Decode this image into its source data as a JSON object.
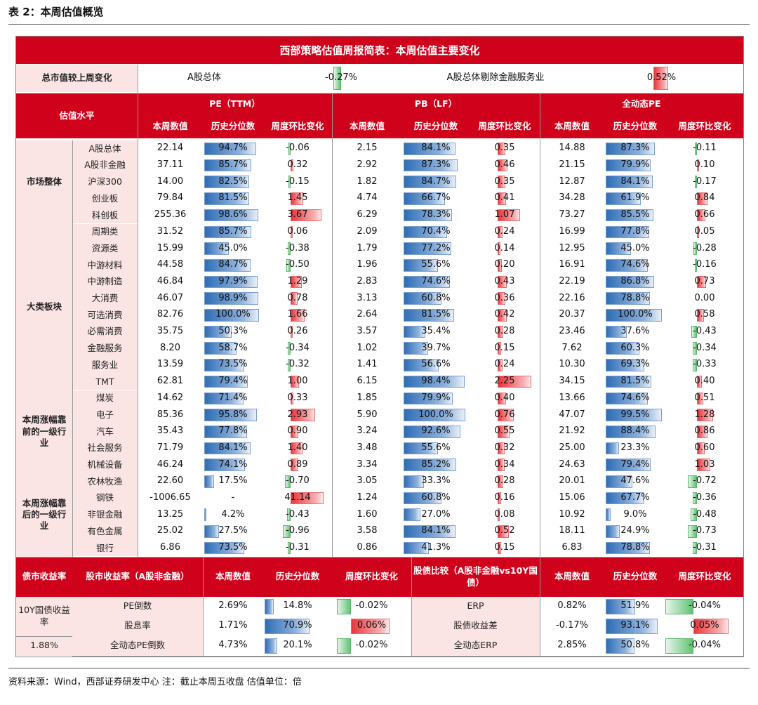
{
  "caption": "表 2：本周估值概览",
  "title": "西部策略估值周报简表：本周估值主要变化",
  "summary": {
    "label": "总市值较上周变化",
    "items": [
      {
        "name": "A股总体",
        "value": "-0.27%",
        "num": -0.27
      },
      {
        "name": "A股总体剔除金融服务业",
        "value": "0.52%",
        "num": 0.52
      }
    ]
  },
  "headers": {
    "level_label": "估值水平",
    "groups": [
      "PE（TTM）",
      "PB（LF）",
      "全动态PE"
    ],
    "sub": [
      "本周数值",
      "历史分位数",
      "周度环比变化"
    ]
  },
  "sections": [
    {
      "name": "市场整体",
      "rows": [
        {
          "name": "A股总体",
          "pe": [
            "22.14",
            "94.7%",
            "-0.06"
          ],
          "pb": [
            "2.15",
            "84.1%",
            "0.35"
          ],
          "dpe": [
            "14.88",
            "87.3%",
            "-0.11"
          ]
        },
        {
          "name": "A股非金融",
          "pe": [
            "37.11",
            "85.7%",
            "0.32"
          ],
          "pb": [
            "2.92",
            "87.3%",
            "0.46"
          ],
          "dpe": [
            "21.15",
            "79.9%",
            "0.10"
          ]
        },
        {
          "name": "沪深300",
          "pe": [
            "14.00",
            "82.5%",
            "-0.15"
          ],
          "pb": [
            "1.82",
            "84.7%",
            "0.35"
          ],
          "dpe": [
            "12.87",
            "84.1%",
            "-0.17"
          ]
        },
        {
          "name": "创业板",
          "pe": [
            "79.84",
            "81.5%",
            "1.45"
          ],
          "pb": [
            "4.74",
            "66.7%",
            "0.41"
          ],
          "dpe": [
            "34.28",
            "61.9%",
            "0.84"
          ]
        },
        {
          "name": "科创板",
          "pe": [
            "255.36",
            "98.6%",
            "3.67"
          ],
          "pb": [
            "6.29",
            "78.3%",
            "1.07"
          ],
          "dpe": [
            "73.27",
            "85.5%",
            "0.66"
          ]
        }
      ]
    },
    {
      "name": "大类板块",
      "rows": [
        {
          "name": "周期类",
          "pe": [
            "31.52",
            "85.7%",
            "0.06"
          ],
          "pb": [
            "2.09",
            "70.4%",
            "0.24"
          ],
          "dpe": [
            "16.99",
            "77.8%",
            "0.05"
          ]
        },
        {
          "name": "资源类",
          "pe": [
            "15.99",
            "45.0%",
            "-0.38"
          ],
          "pb": [
            "1.79",
            "77.2%",
            "0.14"
          ],
          "dpe": [
            "12.95",
            "45.0%",
            "-0.28"
          ]
        },
        {
          "name": "中游材料",
          "pe": [
            "44.58",
            "84.7%",
            "-0.50"
          ],
          "pb": [
            "1.96",
            "55.6%",
            "0.20"
          ],
          "dpe": [
            "16.91",
            "74.6%",
            "-0.16"
          ]
        },
        {
          "name": "中游制造",
          "pe": [
            "46.84",
            "97.9%",
            "1.29"
          ],
          "pb": [
            "2.83",
            "74.6%",
            "0.43"
          ],
          "dpe": [
            "22.19",
            "86.8%",
            "0.73"
          ]
        },
        {
          "name": "大消费",
          "pe": [
            "46.07",
            "98.9%",
            "0.78"
          ],
          "pb": [
            "3.13",
            "60.8%",
            "0.36"
          ],
          "dpe": [
            "22.16",
            "78.8%",
            "0.00"
          ]
        },
        {
          "name": "可选消费",
          "pe": [
            "82.76",
            "100.0%",
            "1.66"
          ],
          "pb": [
            "2.64",
            "81.5%",
            "0.42"
          ],
          "dpe": [
            "20.37",
            "100.0%",
            "0.58"
          ]
        },
        {
          "name": "必需消费",
          "pe": [
            "35.75",
            "50.3%",
            "0.26"
          ],
          "pb": [
            "3.57",
            "35.4%",
            "0.28"
          ],
          "dpe": [
            "23.46",
            "37.6%",
            "-0.43"
          ]
        },
        {
          "name": "金融服务",
          "pe": [
            "8.20",
            "58.7%",
            "-0.34"
          ],
          "pb": [
            "1.02",
            "39.7%",
            "0.15"
          ],
          "dpe": [
            "7.62",
            "60.3%",
            "-0.34"
          ]
        },
        {
          "name": "服务业",
          "pe": [
            "13.59",
            "73.5%",
            "-0.32"
          ],
          "pb": [
            "1.41",
            "56.6%",
            "0.24"
          ],
          "dpe": [
            "10.30",
            "69.3%",
            "-0.33"
          ]
        },
        {
          "name": "TMT",
          "pe": [
            "62.81",
            "79.4%",
            "1.00"
          ],
          "pb": [
            "6.15",
            "98.4%",
            "2.25"
          ],
          "dpe": [
            "34.15",
            "81.5%",
            "0.40"
          ]
        }
      ]
    },
    {
      "name": "本周涨幅靠前的一级行业",
      "rows": [
        {
          "name": "煤炭",
          "pe": [
            "14.62",
            "71.4%",
            "0.33"
          ],
          "pb": [
            "1.85",
            "79.9%",
            "0.40"
          ],
          "dpe": [
            "13.66",
            "74.6%",
            "0.51"
          ]
        },
        {
          "name": "电子",
          "pe": [
            "85.36",
            "95.8%",
            "2.93"
          ],
          "pb": [
            "5.90",
            "100.0%",
            "0.76"
          ],
          "dpe": [
            "47.07",
            "99.5%",
            "1.28"
          ]
        },
        {
          "name": "汽车",
          "pe": [
            "35.43",
            "77.8%",
            "0.90"
          ],
          "pb": [
            "3.24",
            "92.6%",
            "0.55"
          ],
          "dpe": [
            "21.92",
            "88.4%",
            "0.86"
          ]
        },
        {
          "name": "社会服务",
          "pe": [
            "71.79",
            "84.1%",
            "1.40"
          ],
          "pb": [
            "3.48",
            "55.6%",
            "0.32"
          ],
          "dpe": [
            "25.00",
            "23.3%",
            "0.60"
          ]
        },
        {
          "name": "机械设备",
          "pe": [
            "46.24",
            "74.1%",
            "0.89"
          ],
          "pb": [
            "3.34",
            "85.2%",
            "0.34"
          ],
          "dpe": [
            "24.63",
            "79.4%",
            "1.03"
          ]
        }
      ]
    },
    {
      "name": "本周涨幅靠后的一级行业",
      "rows": [
        {
          "name": "农林牧渔",
          "pe": [
            "22.60",
            "17.5%",
            "-0.70"
          ],
          "pb": [
            "3.05",
            "33.3%",
            "0.28"
          ],
          "dpe": [
            "20.01",
            "47.6%",
            "-0.72"
          ]
        },
        {
          "name": "钢铁",
          "pe": [
            "-1006.65",
            "-",
            "41.14"
          ],
          "pb": [
            "1.24",
            "60.8%",
            "0.16"
          ],
          "dpe": [
            "15.06",
            "67.7%",
            "-0.36"
          ]
        },
        {
          "name": "非银金融",
          "pe": [
            "13.25",
            "4.2%",
            "-0.43"
          ],
          "pb": [
            "1.60",
            "27.0%",
            "0.08"
          ],
          "dpe": [
            "10.92",
            "9.0%",
            "-0.48"
          ]
        },
        {
          "name": "有色金属",
          "pe": [
            "25.02",
            "27.5%",
            "-0.96"
          ],
          "pb": [
            "3.58",
            "84.1%",
            "0.52"
          ],
          "dpe": [
            "18.11",
            "24.9%",
            "-0.73"
          ]
        },
        {
          "name": "银行",
          "pe": [
            "6.86",
            "73.5%",
            "-0.31"
          ],
          "pb": [
            "0.86",
            "41.3%",
            "0.15"
          ],
          "dpe": [
            "6.83",
            "78.8%",
            "-0.31"
          ]
        }
      ]
    }
  ],
  "bond": {
    "label": "债市收益率",
    "y10_label": "10Y国债收益率",
    "y10_value": "1.88%",
    "left_header": "股市收益率（A股非金融）",
    "right_header": "股债比较（A股非金融vs10Y国债）",
    "sub": [
      "本周数值",
      "历史分位数",
      "周度环比变化"
    ],
    "left_rows": [
      {
        "name": "PE倒数",
        "v": "2.69%",
        "pct": "14.8%",
        "chg": "-0.02%"
      },
      {
        "name": "股息率",
        "v": "1.71%",
        "pct": "70.9%",
        "chg": "0.06%"
      },
      {
        "name": "全动态PE倒数",
        "v": "4.73%",
        "pct": "20.1%",
        "chg": "-0.02%"
      }
    ],
    "right_rows": [
      {
        "name": "ERP",
        "v": "0.82%",
        "pct": "51.9%",
        "chg": "-0.04%"
      },
      {
        "name": "股债收益差",
        "v": "-0.17%",
        "pct": "93.1%",
        "chg": "0.05%"
      },
      {
        "name": "全动态ERP",
        "v": "2.85%",
        "pct": "50.8%",
        "chg": "-0.04%"
      }
    ]
  },
  "footer": "资料来源：Wind，西部证券研发中心  注：截止本周五收盘  估值单位：倍"
}
